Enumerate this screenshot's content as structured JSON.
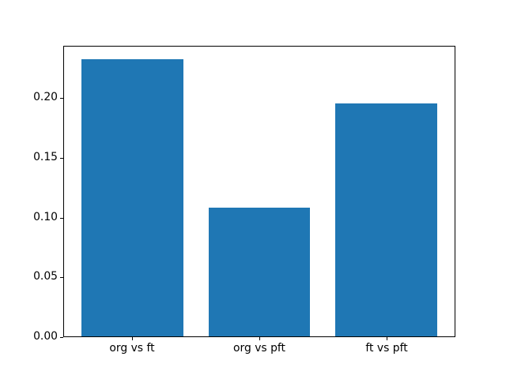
{
  "chart_data": {
    "type": "bar",
    "title": "",
    "xlabel": "",
    "ylabel": "",
    "categories": [
      "org vs ft",
      "org vs pft",
      "ft vs pft"
    ],
    "values": [
      0.233,
      0.108,
      0.196
    ],
    "bar_color": "#1f77b4",
    "bar_width": 0.8,
    "xlim": [
      -0.54,
      2.54
    ],
    "ylim": [
      0,
      0.2437
    ],
    "yticks": [
      0.0,
      0.05,
      0.1,
      0.15,
      0.2
    ],
    "ytick_labels": [
      "0.00",
      "0.05",
      "0.10",
      "0.15",
      "0.20"
    ],
    "grid": false,
    "legend": null,
    "background_color": "#ffffff",
    "axes_color": "#000000"
  }
}
